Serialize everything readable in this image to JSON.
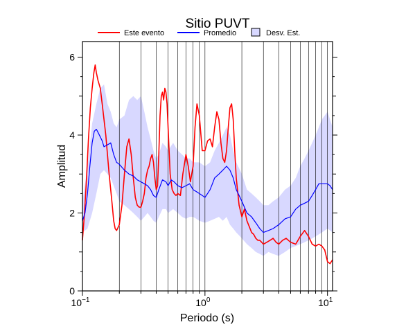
{
  "chart_data": {
    "type": "line",
    "title": "Sitio PUVT",
    "xlabel": "Periodo (s)",
    "ylabel": "Amplitud",
    "xscale": "log",
    "xlim": [
      0.1,
      11
    ],
    "ylim": [
      0,
      6.4
    ],
    "grid": "vertical-log",
    "legend_position": "top",
    "x_tick_labels": [
      {
        "value": 0.1,
        "base": "10",
        "exp": "−1"
      },
      {
        "value": 1,
        "base": "10",
        "exp": "0"
      },
      {
        "value": 10,
        "base": "10",
        "exp": "1"
      }
    ],
    "y_tick_labels": [
      {
        "value": 0,
        "label": "0"
      },
      {
        "value": 2,
        "label": "2"
      },
      {
        "value": 4,
        "label": "4"
      },
      {
        "value": 6,
        "label": "6"
      }
    ],
    "legend": [
      {
        "label": "Este evento",
        "kind": "line",
        "color": "#ff0000"
      },
      {
        "label": "Promedio",
        "kind": "line",
        "color": "#0000ff"
      },
      {
        "label": "Desv. Est.",
        "kind": "box",
        "color": "#d8d8ff"
      }
    ],
    "series": [
      {
        "name": "Este evento",
        "color": "#ff0000",
        "x": [
          0.1,
          0.104,
          0.108,
          0.112,
          0.116,
          0.12,
          0.124,
          0.127,
          0.13,
          0.134,
          0.14,
          0.145,
          0.15,
          0.155,
          0.16,
          0.165,
          0.17,
          0.175,
          0.18,
          0.185,
          0.19,
          0.2,
          0.21,
          0.22,
          0.23,
          0.24,
          0.25,
          0.26,
          0.27,
          0.28,
          0.29,
          0.3,
          0.31,
          0.32,
          0.33,
          0.34,
          0.35,
          0.36,
          0.37,
          0.38,
          0.39,
          0.4,
          0.41,
          0.42,
          0.43,
          0.44,
          0.45,
          0.46,
          0.47,
          0.48,
          0.49,
          0.5,
          0.52,
          0.54,
          0.56,
          0.58,
          0.6,
          0.63,
          0.66,
          0.7,
          0.73,
          0.76,
          0.8,
          0.83,
          0.86,
          0.9,
          0.95,
          1.0,
          1.05,
          1.1,
          1.15,
          1.2,
          1.25,
          1.3,
          1.35,
          1.4,
          1.45,
          1.5,
          1.55,
          1.6,
          1.65,
          1.7,
          1.75,
          1.8,
          1.9,
          2.0,
          2.1,
          2.2,
          2.3,
          2.4,
          2.5,
          2.6,
          2.7,
          2.8,
          2.9,
          3.0,
          3.2,
          3.4,
          3.6,
          3.8,
          4.0,
          4.3,
          4.6,
          5.0,
          5.5,
          6.0,
          6.5,
          7.0,
          7.5,
          8.0,
          8.5,
          9.0,
          9.5,
          10.0,
          10.5,
          11.0
        ],
        "y": [
          1.3,
          2.0,
          2.9,
          3.9,
          4.7,
          5.2,
          5.6,
          5.8,
          5.6,
          5.4,
          5.2,
          4.8,
          4.4,
          4.0,
          3.5,
          3.0,
          2.6,
          2.2,
          1.8,
          1.6,
          1.55,
          1.7,
          2.2,
          3.0,
          3.7,
          3.9,
          3.5,
          2.9,
          2.4,
          2.2,
          2.15,
          2.15,
          2.3,
          2.5,
          2.9,
          3.1,
          3.2,
          3.4,
          3.5,
          3.3,
          2.9,
          2.6,
          2.7,
          3.5,
          4.5,
          5.0,
          5.1,
          4.9,
          5.2,
          5.1,
          4.8,
          4.2,
          3.0,
          2.6,
          2.5,
          2.45,
          2.5,
          2.45,
          3.0,
          3.5,
          3.2,
          2.8,
          3.2,
          4.2,
          4.8,
          4.5,
          3.6,
          3.6,
          3.85,
          3.9,
          3.7,
          4.2,
          4.6,
          4.4,
          3.8,
          3.4,
          3.3,
          3.6,
          4.2,
          4.7,
          4.8,
          4.4,
          3.6,
          2.9,
          2.2,
          1.9,
          2.1,
          1.8,
          1.65,
          1.5,
          1.45,
          1.35,
          1.3,
          1.3,
          1.25,
          1.2,
          1.25,
          1.3,
          1.35,
          1.25,
          1.2,
          1.3,
          1.35,
          1.25,
          1.2,
          1.4,
          1.55,
          1.4,
          1.2,
          1.15,
          1.2,
          1.15,
          1.05,
          0.75,
          0.7,
          0.8
        ]
      },
      {
        "name": "Promedio",
        "color": "#0000ff",
        "x": [
          0.1,
          0.105,
          0.11,
          0.115,
          0.12,
          0.125,
          0.13,
          0.135,
          0.14,
          0.145,
          0.15,
          0.16,
          0.17,
          0.18,
          0.19,
          0.2,
          0.22,
          0.24,
          0.26,
          0.28,
          0.3,
          0.32,
          0.34,
          0.36,
          0.38,
          0.4,
          0.42,
          0.45,
          0.48,
          0.5,
          0.53,
          0.56,
          0.6,
          0.65,
          0.7,
          0.75,
          0.8,
          0.85,
          0.9,
          0.95,
          1.0,
          1.05,
          1.1,
          1.15,
          1.2,
          1.3,
          1.4,
          1.5,
          1.6,
          1.7,
          1.8,
          1.9,
          2.0,
          2.2,
          2.4,
          2.6,
          2.8,
          3.0,
          3.3,
          3.6,
          4.0,
          4.5,
          5.0,
          5.5,
          6.0,
          6.5,
          7.0,
          7.5,
          8.0,
          8.5,
          9.0,
          9.5,
          10.0,
          10.5,
          11.0
        ],
        "y": [
          1.8,
          2.0,
          2.5,
          3.2,
          3.8,
          4.1,
          4.15,
          4.05,
          3.95,
          3.85,
          3.7,
          3.75,
          3.8,
          3.5,
          3.3,
          3.25,
          3.1,
          3.0,
          2.95,
          2.85,
          2.8,
          2.75,
          2.7,
          2.6,
          2.45,
          2.4,
          2.6,
          2.85,
          2.8,
          2.7,
          2.85,
          2.8,
          2.7,
          2.65,
          2.7,
          2.75,
          2.6,
          2.55,
          2.5,
          2.45,
          2.4,
          2.5,
          2.6,
          2.75,
          2.9,
          3.0,
          3.1,
          3.2,
          3.1,
          2.9,
          2.6,
          2.45,
          2.3,
          2.0,
          1.9,
          1.75,
          1.6,
          1.5,
          1.55,
          1.6,
          1.7,
          1.85,
          1.9,
          2.1,
          2.2,
          2.25,
          2.3,
          2.45,
          2.6,
          2.75,
          2.75,
          2.75,
          2.75,
          2.7,
          2.6
        ]
      }
    ],
    "band": {
      "name": "Desv. Est.",
      "color": "#d8d8ff",
      "x": [
        0.1,
        0.11,
        0.12,
        0.13,
        0.14,
        0.15,
        0.16,
        0.17,
        0.18,
        0.19,
        0.2,
        0.22,
        0.24,
        0.26,
        0.28,
        0.3,
        0.32,
        0.34,
        0.36,
        0.38,
        0.4,
        0.42,
        0.45,
        0.48,
        0.5,
        0.55,
        0.6,
        0.65,
        0.7,
        0.75,
        0.8,
        0.85,
        0.9,
        1.0,
        1.1,
        1.2,
        1.3,
        1.4,
        1.5,
        1.6,
        1.7,
        1.8,
        2.0,
        2.2,
        2.4,
        2.6,
        2.8,
        3.0,
        3.3,
        3.6,
        4.0,
        4.5,
        5.0,
        5.5,
        6.0,
        6.5,
        7.0,
        7.5,
        8.0,
        8.5,
        9.0,
        9.5,
        10.0,
        10.5,
        11.0
      ],
      "upper": [
        2.3,
        3.2,
        4.3,
        4.8,
        5.2,
        5.3,
        4.8,
        4.6,
        4.3,
        4.2,
        4.4,
        4.5,
        4.9,
        5.0,
        4.9,
        5.0,
        4.6,
        4.2,
        3.9,
        3.6,
        3.4,
        3.5,
        3.8,
        3.7,
        3.6,
        3.8,
        3.6,
        3.5,
        3.4,
        3.4,
        3.3,
        3.3,
        3.3,
        3.2,
        3.3,
        3.6,
        3.8,
        4.0,
        4.2,
        4.0,
        3.6,
        3.3,
        3.0,
        2.6,
        2.5,
        2.4,
        2.3,
        2.2,
        2.2,
        2.3,
        2.4,
        2.6,
        2.7,
        2.9,
        3.2,
        3.4,
        3.6,
        3.8,
        4.0,
        4.2,
        4.4,
        4.5,
        4.6,
        4.4,
        4.2
      ],
      "lower": [
        1.5,
        1.6,
        2.0,
        2.5,
        3.0,
        3.1,
        3.0,
        2.9,
        2.7,
        2.5,
        2.3,
        2.2,
        2.1,
        2.0,
        1.9,
        1.8,
        1.9,
        2.0,
        1.9,
        1.8,
        1.75,
        1.9,
        2.1,
        2.1,
        2.0,
        2.1,
        2.0,
        1.9,
        1.85,
        1.9,
        1.9,
        1.85,
        1.8,
        1.75,
        1.8,
        1.85,
        1.9,
        1.8,
        1.9,
        1.7,
        1.6,
        1.5,
        1.35,
        1.2,
        1.1,
        1.0,
        0.95,
        0.9,
        1.0,
        0.95,
        0.9,
        1.0,
        1.1,
        1.15,
        1.2,
        1.25,
        1.3,
        1.35,
        1.4,
        1.45,
        1.5,
        1.55,
        1.6,
        1.55,
        1.5
      ]
    }
  }
}
